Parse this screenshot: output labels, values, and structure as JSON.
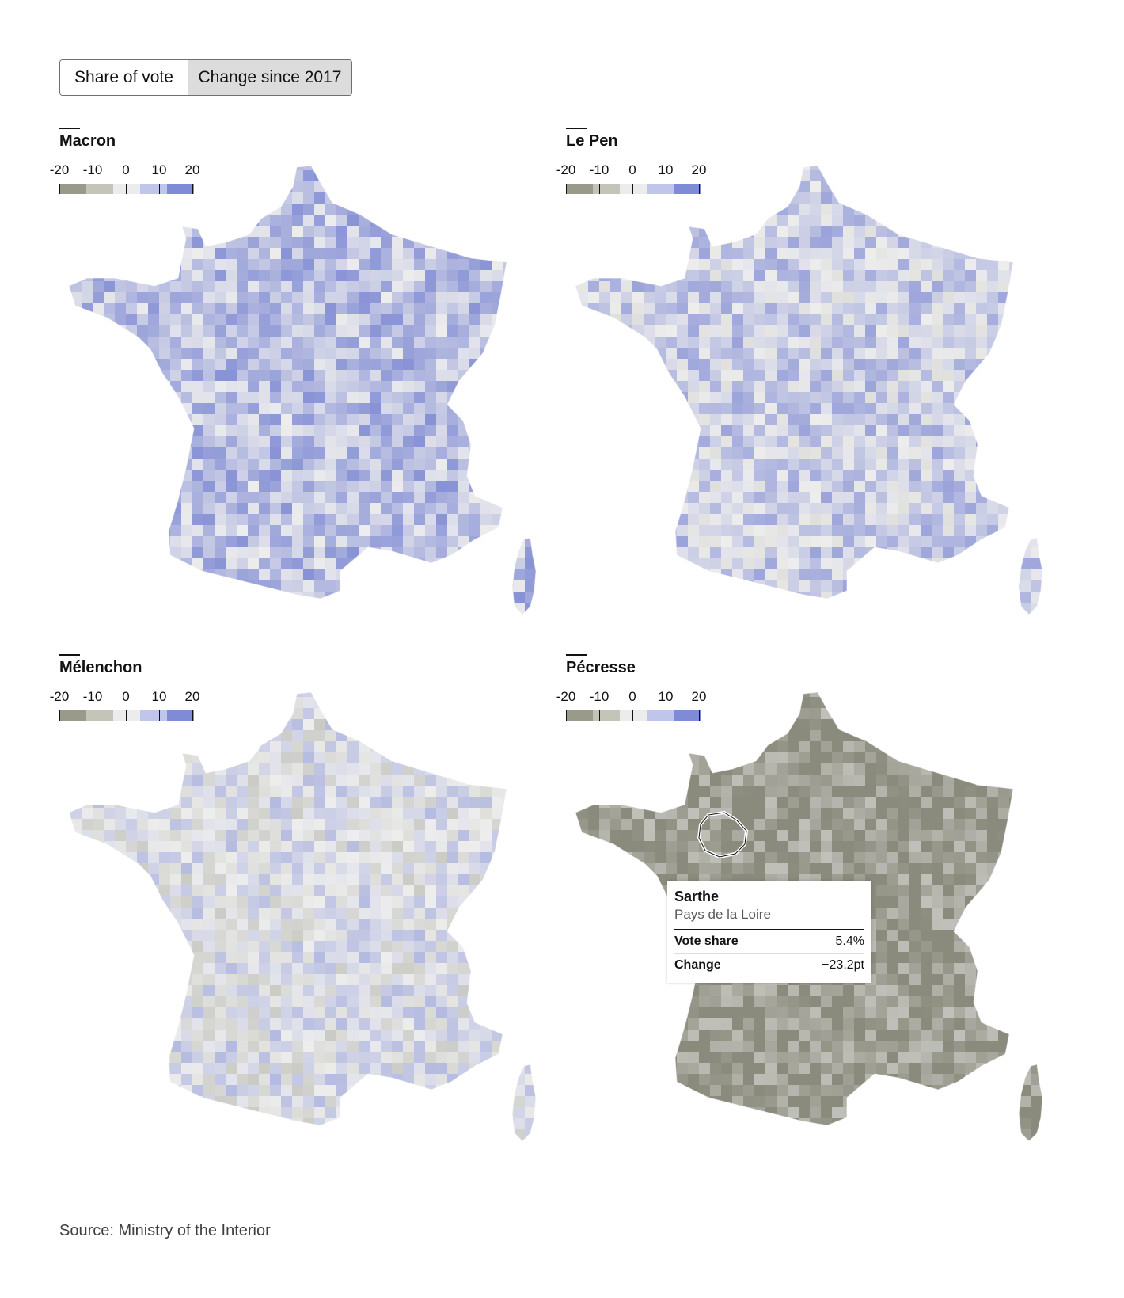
{
  "toggle": {
    "options": [
      "Share of vote",
      "Change since 2017"
    ],
    "selected": "Change since 2017"
  },
  "legend": {
    "ticks": [
      "-20",
      "-10",
      "0",
      "10",
      "20"
    ],
    "colors": [
      "#9a9a8a",
      "#c4c4b8",
      "#ececec",
      "#bfc6ea",
      "#7f8bd4"
    ]
  },
  "colors": {
    "negative_strong": "#8b8b7d",
    "neutral": "#eeeeee",
    "positive_strong": "#6f7cd0"
  },
  "panels": [
    {
      "title": "Macron",
      "mean_change": 8
    },
    {
      "title": "Le Pen",
      "mean_change": 5
    },
    {
      "title": "Mélenchon",
      "mean_change": 1
    },
    {
      "title": "Pécresse",
      "mean_change": -17
    }
  ],
  "tooltip": {
    "name": "Sarthe",
    "region": "Pays de la Loire",
    "rows": [
      {
        "label": "Vote share",
        "value": "5.4%"
      },
      {
        "label": "Change",
        "value": "−23.2pt"
      }
    ]
  },
  "source": "Source: Ministry of the Interior"
}
